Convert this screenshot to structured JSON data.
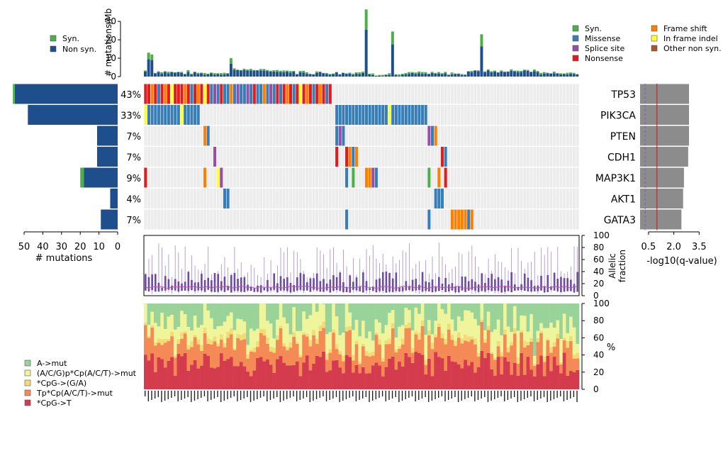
{
  "chart_data": [
    {
      "type": "bar",
      "panel": "mutation-burden",
      "ylabel": "# mutations/Mb",
      "ylim": [
        0,
        37
      ],
      "yticks": [
        0,
        10,
        20,
        30
      ],
      "legend": [
        "Syn.",
        "Non syn."
      ],
      "spikes": [
        {
          "sample": 1,
          "nonsyn": 9.5,
          "syn": 3.5
        },
        {
          "sample": 2,
          "nonsyn": 9,
          "syn": 3
        },
        {
          "sample": 26,
          "nonsyn": 7,
          "syn": 3
        },
        {
          "sample": 67,
          "nonsyn": 25.5,
          "syn": 11
        },
        {
          "sample": 75,
          "nonsyn": 17.5,
          "syn": 7
        },
        {
          "sample": 102,
          "nonsyn": 16.5,
          "syn": 6.5
        }
      ]
    },
    {
      "type": "heatmap",
      "panel": "oncoprint",
      "genes": [
        {
          "name": "TP53",
          "pct": "43%",
          "count": 55,
          "syn": 1,
          "q": 2.9
        },
        {
          "name": "PIK3CA",
          "pct": "33%",
          "count": 48,
          "syn": 0,
          "q": 2.9
        },
        {
          "name": "PTEN",
          "pct": "7%",
          "count": 11,
          "syn": 0,
          "q": 2.9
        },
        {
          "name": "CDH1",
          "pct": "7%",
          "count": 11,
          "syn": 0,
          "q": 2.85
        },
        {
          "name": "MAP3K1",
          "pct": "9%",
          "count": 18,
          "syn": 2,
          "q": 2.6
        },
        {
          "name": "AKT1",
          "pct": "4%",
          "count": 4,
          "syn": 0,
          "q": 2.55
        },
        {
          "name": "GATA3",
          "pct": "7%",
          "count": 9,
          "syn": 0,
          "q": 2.45
        }
      ],
      "legend": [
        "Syn.",
        "Missense",
        "Splice site",
        "Nonsense",
        "Frame shift",
        "In frame indel",
        "Other non syn."
      ],
      "legend_colors": [
        "#4daf4a",
        "#377eb8",
        "#984ea3",
        "#e41a1c",
        "#ff7f00",
        "#ffff33",
        "#a65628"
      ]
    },
    {
      "type": "bar",
      "panel": "gene-count",
      "xlabel": "# mutations",
      "xticks": [
        50,
        40,
        30,
        20,
        10,
        0
      ]
    },
    {
      "type": "bar",
      "panel": "significance",
      "xlabel": "-log10(q-value)",
      "xticks": [
        0.5,
        2.0,
        3.5
      ],
      "threshold_solid": 1,
      "threshold_dashed": 0.3
    },
    {
      "type": "scatter",
      "panel": "allelic-fraction",
      "ylabel": "Allelic fraction",
      "ylim": [
        0,
        100
      ],
      "yticks": [
        0,
        20,
        40,
        60,
        80,
        100
      ]
    },
    {
      "type": "area",
      "panel": "mutation-spectrum",
      "ylabel": "%",
      "ylim": [
        0,
        100
      ],
      "yticks": [
        0,
        20,
        40,
        60,
        80,
        100
      ],
      "legend": [
        "A->mut",
        "(A/C/G)p*Cp(A/C/T)->mut",
        "*CpG->(G/A)",
        "Tp*Cp(A/C/T)->mut",
        "*CpG->T"
      ],
      "legend_colors": [
        "#9ad39a",
        "#eef59a",
        "#f2dc78",
        "#f48a55",
        "#d43b4d"
      ]
    }
  ]
}
